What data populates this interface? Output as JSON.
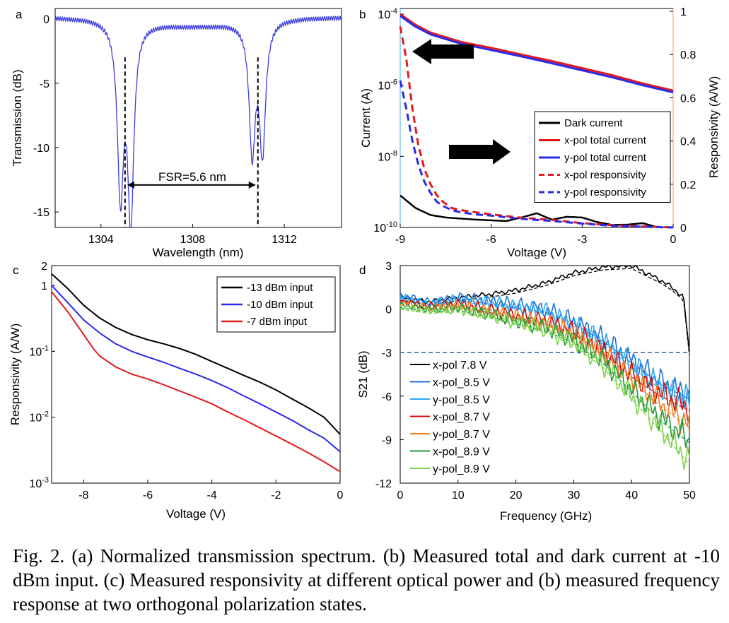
{
  "caption": "Fig. 2.  (a) Normalized transmission spectrum. (b) Measured total and dark current at -10 dBm input. (c) Measured responsivity at different optical power and (b) measured frequency response at two orthogonal polarization states.",
  "chart_data": [
    {
      "panel": "a",
      "type": "line",
      "xlabel": "Wavelength (nm)",
      "ylabel": "Transmission (dB)",
      "xlim": [
        1302,
        1314.5
      ],
      "ylim": [
        -16.2,
        0.8
      ],
      "xticks": [
        1304,
        1308,
        1312
      ],
      "yticks": [
        0,
        -5,
        -10,
        -15
      ],
      "color": "#3d3ddc",
      "baseline_db": 0.1,
      "dips": [
        {
          "center": 1304.85,
          "depth": -13.4
        },
        {
          "center": 1305.3,
          "depth": -15.3
        },
        {
          "center": 1310.6,
          "depth": -10.1
        },
        {
          "center": 1311.05,
          "depth": -10.1
        }
      ],
      "markers": [
        1305.05,
        1310.85
      ],
      "annotation": "FSR=5.6 nm"
    },
    {
      "panel": "b",
      "type": "line",
      "xlabel": "Voltage (V)",
      "ylabel_left": "Current (A)",
      "ylabel_right": "Responsivity (A/W)",
      "xlim": [
        -9,
        0
      ],
      "xticks": [
        -9,
        -6,
        -3,
        0
      ],
      "ylim_left_log10": [
        -10,
        -4
      ],
      "yticks_left": [
        "10-4",
        "10-6",
        "10-8",
        "10-10"
      ],
      "ylim_right": [
        0,
        1
      ],
      "yticks_right": [
        0,
        0.2,
        0.4,
        0.6,
        0.8,
        1
      ],
      "series": [
        {
          "name": "Dark current",
          "color": "#000000",
          "dash": false,
          "axis": "left",
          "x": [
            -9,
            -8.5,
            -8,
            -7.5,
            -7,
            -6.5,
            -6,
            -5.5,
            -5,
            -4.5,
            -4,
            -3.5,
            -3,
            -2.5,
            -2,
            -1.5,
            -1,
            -0.5
          ],
          "log10_y": [
            -9.1,
            -9.45,
            -9.65,
            -9.72,
            -9.75,
            -9.78,
            -9.8,
            -9.82,
            -9.72,
            -9.6,
            -9.78,
            -9.7,
            -9.72,
            -9.85,
            -9.93,
            -9.92,
            -9.88,
            -10
          ]
        },
        {
          "name": "x-pol total current",
          "color": "#e31a1c",
          "dash": false,
          "axis": "left",
          "x": [
            -9,
            -8.5,
            -8,
            -7,
            -6,
            -5,
            -4,
            -3,
            -2,
            -1,
            0
          ],
          "log10_y": [
            -4,
            -4.3,
            -4.52,
            -4.78,
            -4.95,
            -5.14,
            -5.32,
            -5.52,
            -5.72,
            -5.95,
            -6.15
          ]
        },
        {
          "name": "y-pol total current",
          "color": "#2a2ae8",
          "dash": false,
          "axis": "left",
          "x": [
            -9,
            -8.5,
            -8,
            -7,
            -6,
            -5,
            -4,
            -3,
            -2,
            -1,
            0
          ],
          "log10_y": [
            -4.05,
            -4.35,
            -4.57,
            -4.83,
            -5.01,
            -5.19,
            -5.38,
            -5.58,
            -5.78,
            -6.0,
            -6.2
          ]
        },
        {
          "name": "x-pol responsivity",
          "color": "#e31a1c",
          "dash": true,
          "axis": "right",
          "x": [
            -9,
            -8.8,
            -8.6,
            -8.4,
            -8.2,
            -8,
            -7.8,
            -7.6,
            -7.3,
            -7,
            -6.5,
            -6,
            -5,
            -4,
            -3,
            -2,
            -1,
            0
          ],
          "y": [
            0.93,
            0.78,
            0.55,
            0.38,
            0.27,
            0.2,
            0.15,
            0.12,
            0.09,
            0.08,
            0.07,
            0.06,
            0.045,
            0.035,
            0.02,
            0.01,
            0.005,
            0.0
          ]
        },
        {
          "name": "y-pol responsivity",
          "color": "#2a2ae8",
          "dash": true,
          "axis": "right",
          "x": [
            -9,
            -8.8,
            -8.6,
            -8.4,
            -8.2,
            -8,
            -7.8,
            -7.6,
            -7.3,
            -7,
            -6.5,
            -6,
            -5,
            -4,
            -3,
            -2,
            -1,
            0
          ],
          "y": [
            0.68,
            0.55,
            0.4,
            0.29,
            0.21,
            0.16,
            0.12,
            0.1,
            0.08,
            0.07,
            0.06,
            0.055,
            0.04,
            0.03,
            0.018,
            0.008,
            0.003,
            0.0
          ]
        }
      ]
    },
    {
      "panel": "c",
      "type": "line",
      "xlabel": "Voltage (V)",
      "ylabel": "Responsivity (A/W)",
      "xlim": [
        -9,
        0
      ],
      "xticks": [
        -8,
        -6,
        -4,
        -2,
        0
      ],
      "ylim": [
        0.001,
        2
      ],
      "yticks": [
        "2",
        "1",
        "10-1",
        "10-2",
        "10-3"
      ],
      "series": [
        {
          "name": "-13 dBm input",
          "color": "#000000",
          "x": [
            -9,
            -8.5,
            -8,
            -7.5,
            -7,
            -6.5,
            -6,
            -5.5,
            -5,
            -4.5,
            -4,
            -3.5,
            -3,
            -2.5,
            -2,
            -1.5,
            -1,
            -0.5,
            0
          ],
          "y": [
            1.5,
            0.9,
            0.5,
            0.32,
            0.23,
            0.18,
            0.15,
            0.13,
            0.11,
            0.09,
            0.07,
            0.055,
            0.043,
            0.034,
            0.026,
            0.019,
            0.014,
            0.01,
            0.0055
          ]
        },
        {
          "name": "-10 dBm input",
          "color": "#2a2ae8",
          "x": [
            -9,
            -8.5,
            -8,
            -7.5,
            -7,
            -6.5,
            -6,
            -5.5,
            -5,
            -4.5,
            -4,
            -3.5,
            -3,
            -2.5,
            -2,
            -1.5,
            -1,
            -0.5,
            0
          ],
          "y": [
            1.0,
            0.55,
            0.3,
            0.19,
            0.13,
            0.1,
            0.082,
            0.068,
            0.055,
            0.045,
            0.036,
            0.028,
            0.021,
            0.016,
            0.012,
            0.009,
            0.0065,
            0.0048,
            0.003
          ]
        },
        {
          "name": "-7 dBm input",
          "color": "#e31a1c",
          "x": [
            -9,
            -8.5,
            -8,
            -7.7,
            -7.5,
            -7,
            -6.5,
            -6,
            -5.5,
            -5,
            -4.5,
            -4,
            -3.5,
            -3,
            -2.5,
            -2,
            -1.5,
            -1,
            -0.5,
            0
          ],
          "y": [
            0.8,
            0.4,
            0.18,
            0.11,
            0.085,
            0.058,
            0.045,
            0.038,
            0.031,
            0.025,
            0.02,
            0.016,
            0.012,
            0.0092,
            0.0069,
            0.0052,
            0.0039,
            0.0029,
            0.0021,
            0.0015
          ]
        }
      ]
    },
    {
      "panel": "d",
      "type": "line",
      "xlabel": "Frequency (GHz)",
      "ylabel": "S21 (dB)",
      "xlim": [
        0,
        50
      ],
      "ylim": [
        -12,
        3
      ],
      "xticks": [
        0,
        10,
        20,
        30,
        40,
        50
      ],
      "yticks": [
        3,
        0,
        -3,
        -6,
        -9,
        -12
      ],
      "reference_line_db": -3,
      "series": [
        {
          "name": "x-pol 7.8 V",
          "color": "#000000",
          "x": [
            0,
            5,
            10,
            15,
            20,
            25,
            30,
            35,
            40,
            45,
            47,
            49,
            50
          ],
          "y": [
            0.8,
            0.5,
            0.8,
            1.0,
            1.3,
            1.8,
            2.5,
            2.9,
            3.0,
            2.0,
            1.5,
            0.8,
            -3.0
          ]
        },
        {
          "name": "x-pol_8.5 V",
          "color": "#1f6fd6",
          "x": [
            0,
            5,
            10,
            15,
            20,
            25,
            30,
            35,
            40,
            45,
            50
          ],
          "y": [
            1.0,
            0.5,
            0.8,
            0.6,
            0.3,
            0.0,
            -0.8,
            -2.0,
            -3.5,
            -5.0,
            -6.0
          ]
        },
        {
          "name": "y-pol_8.5 V",
          "color": "#2eaaf0",
          "x": [
            0,
            5,
            10,
            15,
            20,
            25,
            30,
            35,
            40,
            45,
            50
          ],
          "y": [
            0.9,
            0.4,
            0.7,
            0.5,
            0.2,
            -0.1,
            -1.0,
            -2.2,
            -3.8,
            -5.3,
            -6.3
          ]
        },
        {
          "name": "x-pol_8.7 V",
          "color": "#cc1010",
          "x": [
            0,
            5,
            10,
            15,
            20,
            25,
            30,
            35,
            40,
            45,
            50
          ],
          "y": [
            0.6,
            0.2,
            0.4,
            0.0,
            -0.4,
            -0.8,
            -1.5,
            -2.8,
            -4.5,
            -5.8,
            -6.8
          ]
        },
        {
          "name": "y-pol_8.7 V",
          "color": "#f07f20",
          "x": [
            0,
            5,
            10,
            15,
            20,
            25,
            30,
            35,
            40,
            45,
            50
          ],
          "y": [
            0.5,
            0.1,
            0.3,
            -0.1,
            -0.5,
            -0.9,
            -1.6,
            -3.0,
            -4.7,
            -6.5,
            -8.0
          ]
        },
        {
          "name": "x-pol_8.9 V",
          "color": "#1f9a3c",
          "x": [
            0,
            5,
            10,
            15,
            20,
            25,
            30,
            35,
            40,
            45,
            50
          ],
          "y": [
            0.3,
            0.0,
            0.1,
            -0.3,
            -0.8,
            -1.3,
            -2.1,
            -3.5,
            -5.5,
            -7.5,
            -9.0
          ]
        },
        {
          "name": "y-pol_8.9 V",
          "color": "#7fd24a",
          "x": [
            0,
            5,
            10,
            15,
            20,
            25,
            30,
            35,
            40,
            45,
            50
          ],
          "y": [
            0.2,
            -0.1,
            0.0,
            -0.4,
            -0.9,
            -1.4,
            -2.3,
            -3.8,
            -6.0,
            -8.2,
            -10.5
          ]
        }
      ]
    }
  ]
}
